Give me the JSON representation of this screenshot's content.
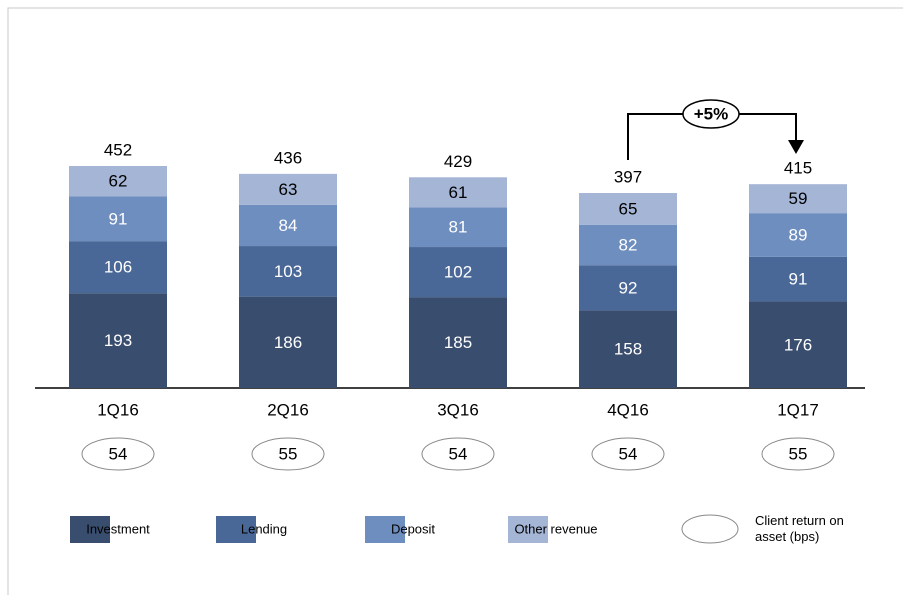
{
  "chart_data": {
    "type": "stacked_bar",
    "categories": [
      "1Q16",
      "2Q16",
      "3Q16",
      "4Q16",
      "1Q17"
    ],
    "series": [
      {
        "name": "Investment",
        "color": "#394d6e",
        "values": [
          193,
          186,
          185,
          158,
          176
        ]
      },
      {
        "name": "Lending",
        "color": "#4a6897",
        "values": [
          106,
          103,
          102,
          92,
          91
        ]
      },
      {
        "name": "Deposit",
        "color": "#6e8ec0",
        "values": [
          91,
          84,
          81,
          82,
          89
        ]
      },
      {
        "name": "Other revenue",
        "color": "#a4b5d5",
        "values": [
          62,
          63,
          61,
          65,
          59
        ]
      }
    ],
    "totals": [
      452,
      436,
      429,
      397,
      415
    ],
    "roa_label": "Client return on asset (bps)",
    "roa": [
      54,
      55,
      54,
      54,
      55
    ],
    "annotation": "+5%"
  }
}
